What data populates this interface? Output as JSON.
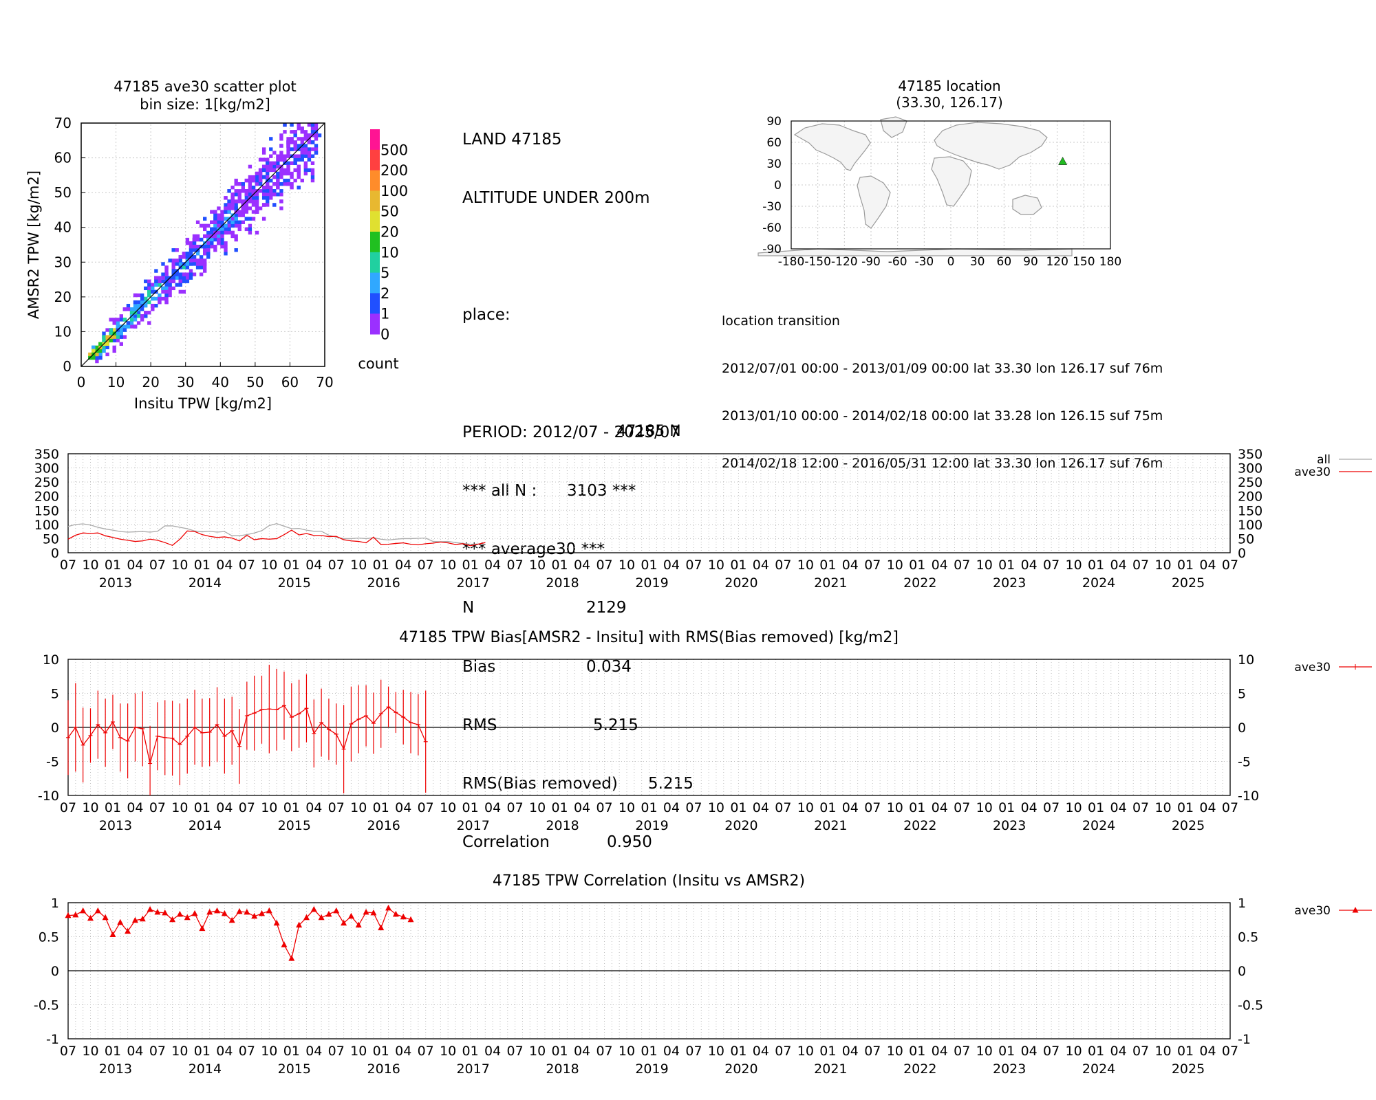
{
  "scatter": {
    "title": "47185 ave30 scatter plot",
    "subtitle": "bin size: 1[kg/m2]",
    "xlabel": "Insitu TPW [kg/m2]",
    "ylabel": "AMSR2 TPW [kg/m2]",
    "xticks": [
      "0",
      "10",
      "20",
      "30",
      "40",
      "50",
      "60",
      "70"
    ],
    "yticks": [
      "0",
      "10",
      "20",
      "30",
      "40",
      "50",
      "60",
      "70"
    ],
    "colorbar_label": "count",
    "colorbar_ticks": [
      "500",
      "200",
      "100",
      "50",
      "20",
      "10",
      "5",
      "2",
      "1",
      "0"
    ],
    "colorbar_colors": [
      "#ff1493",
      "#ff4040",
      "#ff8c2a",
      "#e8b830",
      "#e0e030",
      "#20c020",
      "#20d0a0",
      "#30a8ff",
      "#2050ff",
      "#9b30ff"
    ]
  },
  "stats": {
    "station": "LAND 47185",
    "altitude": "ALTITUDE UNDER 200m",
    "place": "place:",
    "period": "PERIOD: 2012/07 - 2025/07",
    "all_n_label": "*** all N :",
    "all_n_value": "3103 ***",
    "avg_header": "*** average30 ***",
    "n_label": "N",
    "n_value": "2129",
    "bias_label": "Bias",
    "bias_value": "0.034",
    "rms_label": "RMS",
    "rms_value": "5.215",
    "rms_br_label": "RMS(Bias removed)",
    "rms_br_value": "5.215",
    "corr_label": "Correlation",
    "corr_value": "0.950"
  },
  "map": {
    "title": "47185 location",
    "subtitle": "(33.30, 126.17)",
    "xticks": [
      "-180",
      "-150",
      "-120",
      "-90",
      "-60",
      "-30",
      "0",
      "30",
      "60",
      "90",
      "120",
      "150",
      "180"
    ],
    "yticks": [
      "90",
      "60",
      "30",
      "0",
      "-30",
      "-60",
      "-90"
    ],
    "marker_color": "#22bb22",
    "station_lat": 33.3,
    "station_lon": 126.17
  },
  "transition": {
    "header": "location transition",
    "lines": [
      "2012/07/01 00:00 - 2013/01/09 00:00 lat 33.30 lon 126.17 suf 76m",
      "2013/01/10 00:00 - 2014/02/18 00:00 lat 33.28 lon 126.15 suf 75m",
      "2014/02/18 12:00 - 2016/05/31 12:00 lat 33.30 lon 126.17 suf 76m"
    ]
  },
  "timeseries_common": {
    "month_labels": [
      "07",
      "10",
      "01",
      "04"
    ],
    "last_month_label": "07",
    "years": [
      "2013",
      "2014",
      "2015",
      "2016",
      "2017",
      "2018",
      "2019",
      "2020",
      "2021",
      "2022",
      "2023",
      "2024",
      "2025"
    ]
  },
  "chart_data": [
    {
      "type": "scatter",
      "title": "47185 ave30 scatter plot",
      "subtitle": "bin size: 1[kg/m2]",
      "xlabel": "Insitu TPW [kg/m2]",
      "ylabel": "AMSR2 TPW [kg/m2]",
      "xlim": [
        0,
        70
      ],
      "ylim": [
        0,
        70
      ],
      "grid": true,
      "points": [
        [
          2,
          2
        ],
        [
          3,
          3
        ],
        [
          4,
          5
        ],
        [
          5,
          4
        ],
        [
          5,
          6
        ],
        [
          6,
          7
        ],
        [
          7,
          6
        ],
        [
          7,
          8
        ],
        [
          8,
          9
        ],
        [
          9,
          8
        ],
        [
          10,
          11
        ],
        [
          11,
          10
        ],
        [
          12,
          13
        ],
        [
          13,
          12
        ],
        [
          14,
          15
        ],
        [
          15,
          16
        ],
        [
          16,
          14
        ],
        [
          17,
          18
        ],
        [
          18,
          17
        ],
        [
          19,
          20
        ],
        [
          20,
          21
        ],
        [
          21,
          19
        ],
        [
          22,
          23
        ],
        [
          23,
          22
        ],
        [
          24,
          26
        ],
        [
          25,
          24
        ],
        [
          26,
          27
        ],
        [
          27,
          25
        ],
        [
          28,
          30
        ],
        [
          29,
          28
        ],
        [
          30,
          31
        ],
        [
          31,
          33
        ],
        [
          32,
          30
        ],
        [
          33,
          34
        ],
        [
          34,
          36
        ],
        [
          35,
          33
        ],
        [
          36,
          37
        ],
        [
          37,
          39
        ],
        [
          38,
          36
        ],
        [
          39,
          40
        ],
        [
          40,
          42
        ],
        [
          41,
          39
        ],
        [
          42,
          44
        ],
        [
          43,
          41
        ],
        [
          44,
          46
        ],
        [
          45,
          47
        ],
        [
          46,
          44
        ],
        [
          47,
          49
        ],
        [
          48,
          50
        ],
        [
          49,
          47
        ],
        [
          50,
          52
        ],
        [
          51,
          53
        ],
        [
          52,
          50
        ],
        [
          53,
          55
        ],
        [
          54,
          56
        ],
        [
          55,
          57
        ],
        [
          56,
          54
        ],
        [
          57,
          59
        ],
        [
          58,
          60
        ],
        [
          59,
          58
        ],
        [
          60,
          62
        ],
        [
          61,
          59
        ],
        [
          62,
          63
        ],
        [
          63,
          61
        ],
        [
          64,
          65
        ],
        [
          65,
          66
        ],
        [
          66,
          64
        ],
        [
          67,
          67
        ],
        [
          68,
          66
        ]
      ]
    },
    {
      "type": "line",
      "title": "47185 N",
      "ylim": [
        0,
        350
      ],
      "yticks": [
        0,
        50,
        100,
        150,
        200,
        250,
        300,
        350
      ],
      "x_start": "2012-07",
      "x_end": "2025-07",
      "series": [
        {
          "name": "all",
          "color": "#aaaaaa",
          "start": "2012-07",
          "values": [
            93,
            100,
            102,
            98,
            90,
            84,
            80,
            75,
            73,
            74,
            75,
            73,
            76,
            95,
            95,
            90,
            85,
            77,
            74,
            76,
            73,
            75,
            60,
            60,
            64,
            70,
            78,
            96,
            103,
            94,
            85,
            86,
            80,
            76,
            76,
            62,
            55,
            50,
            50,
            52,
            50,
            53,
            48,
            45,
            48,
            50,
            50,
            51,
            52,
            40,
            39,
            40,
            36,
            33,
            30,
            31,
            30
          ]
        },
        {
          "name": "ave30",
          "color": "#ee0000",
          "start": "2012-07",
          "values": [
            48,
            62,
            70,
            68,
            70,
            60,
            54,
            48,
            44,
            40,
            42,
            48,
            44,
            36,
            26,
            48,
            77,
            75,
            64,
            58,
            54,
            56,
            52,
            42,
            62,
            46,
            50,
            48,
            50,
            64,
            80,
            63,
            68,
            61,
            61,
            57,
            58,
            46,
            42,
            40,
            35,
            55,
            29,
            30,
            33,
            35,
            30,
            28,
            32,
            34,
            38,
            35,
            29,
            32,
            25,
            30,
            36
          ]
        }
      ]
    },
    {
      "type": "line",
      "title": "47185 TPW Bias[AMSR2 - Insitu] with RMS(Bias removed) [kg/m2]",
      "ylim": [
        -10,
        10
      ],
      "yticks": [
        -10,
        -5,
        0,
        5,
        10
      ],
      "x_start": "2012-07",
      "x_end": "2025-07",
      "series": [
        {
          "name": "ave30",
          "color": "#ee0000",
          "start": "2012-07",
          "values": [
            -1.5,
            0,
            -2.6,
            -1.2,
            0.4,
            -0.8,
            0.8,
            -1.5,
            -2.0,
            0,
            -0.2,
            -5.3,
            -1.3,
            -1.5,
            -1.6,
            -2.5,
            -1.3,
            0,
            -0.8,
            -0.7,
            0.4,
            -1.3,
            -0.5,
            -2.8,
            1.7,
            2.1,
            2.6,
            2.7,
            2.6,
            3.2,
            1.5,
            2.0,
            2.8,
            -0.9,
            0.7,
            -0.3,
            -1.0,
            -3.2,
            0.5,
            1.2,
            1.7,
            0.6,
            2.0,
            3.0,
            2.2,
            1.5,
            0.7,
            0.4,
            -2.1
          ],
          "errors": [
            5.5,
            6.5,
            5.5,
            4.0,
            5.0,
            5.0,
            4.0,
            5.0,
            5.5,
            5.0,
            5.5,
            5.5,
            5.0,
            5.5,
            5.5,
            6.0,
            5.5,
            5.5,
            5.0,
            5.0,
            5.5,
            5.5,
            5.0,
            5.5,
            5.0,
            5.5,
            5.0,
            6.5,
            6.0,
            5.0,
            5.0,
            5.0,
            5.0,
            5.0,
            5.0,
            4.5,
            4.5,
            6.5,
            5.5,
            5.0,
            4.5,
            4.5,
            5.0,
            3.0,
            3.0,
            4.0,
            4.5,
            4.5,
            7.5
          ]
        }
      ]
    },
    {
      "type": "line",
      "title": "47185 TPW Correlation (Insitu vs AMSR2)",
      "ylim": [
        -1,
        1
      ],
      "yticks": [
        -1,
        -0.5,
        0,
        0.5,
        1
      ],
      "x_start": "2012-07",
      "x_end": "2025-07",
      "series": [
        {
          "name": "ave30",
          "color": "#ee0000",
          "marker": "triangle",
          "start": "2012-07",
          "values": [
            0.81,
            0.82,
            0.88,
            0.77,
            0.88,
            0.78,
            0.53,
            0.71,
            0.58,
            0.74,
            0.76,
            0.9,
            0.86,
            0.85,
            0.75,
            0.83,
            0.78,
            0.84,
            0.62,
            0.86,
            0.88,
            0.84,
            0.74,
            0.87,
            0.86,
            0.8,
            0.84,
            0.88,
            0.7,
            0.38,
            0.18,
            0.67,
            0.78,
            0.9,
            0.78,
            0.83,
            0.88,
            0.7,
            0.8,
            0.67,
            0.86,
            0.85,
            0.63,
            0.92,
            0.83,
            0.79,
            0.75
          ]
        }
      ]
    }
  ]
}
